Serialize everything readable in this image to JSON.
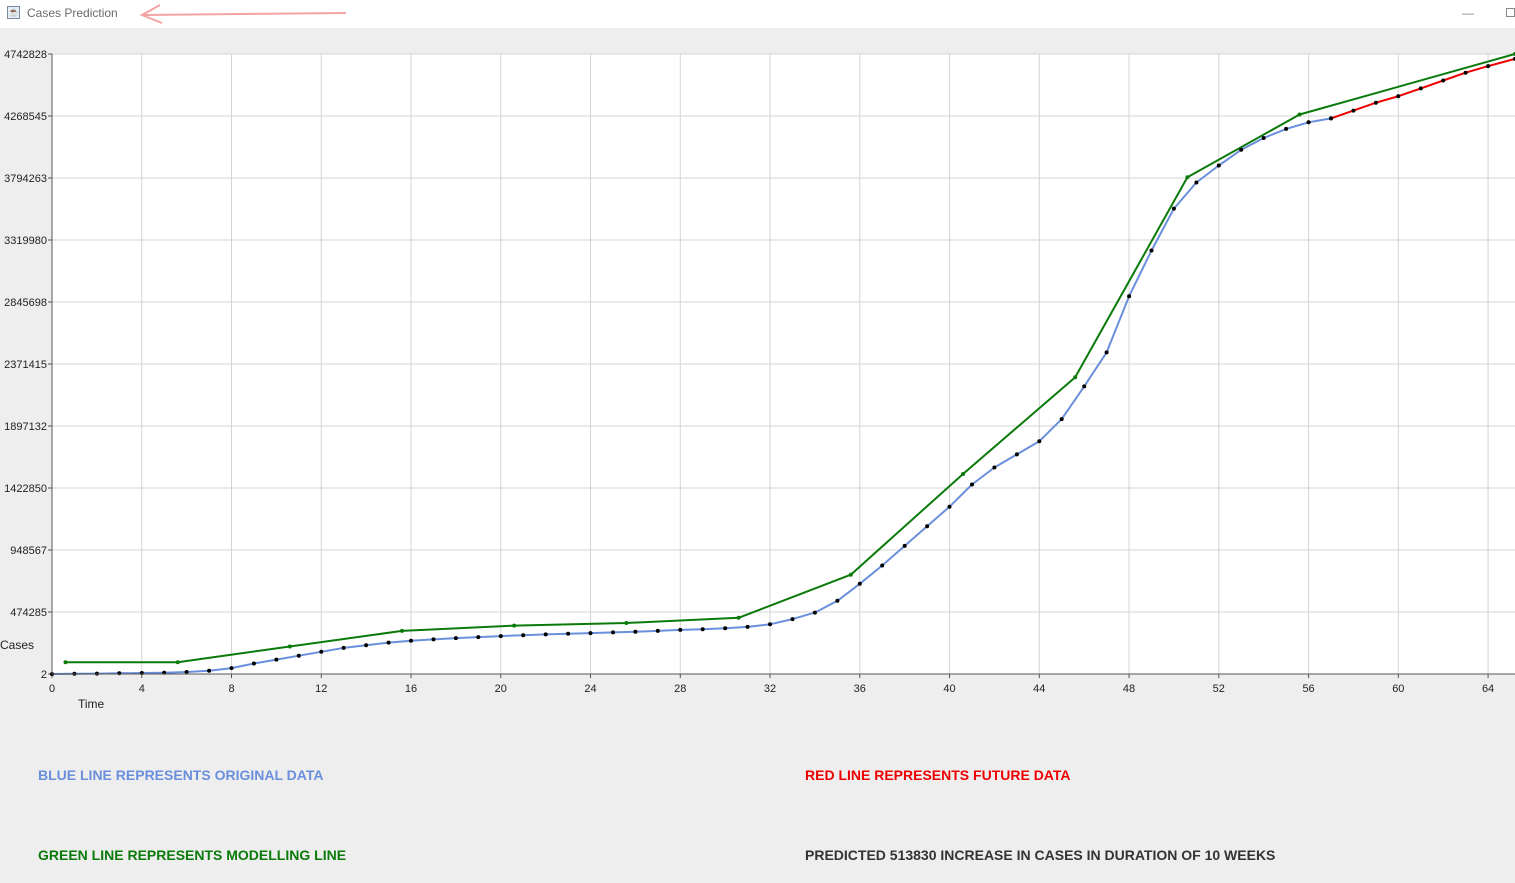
{
  "window": {
    "title": "Cases Prediction",
    "minimize_icon": "minimize-icon",
    "maximize_icon": "maximize-icon"
  },
  "legend": {
    "blue": {
      "text": "BLUE LINE REPRESENTS ORIGINAL DATA",
      "color": "#6a8fdc"
    },
    "red": {
      "text": "RED LINE REPRESENTS FUTURE DATA",
      "color": "#ee0000"
    },
    "green": {
      "text": "GREEN LINE REPRESENTS MODELLING LINE",
      "color": "#0a7a0a"
    },
    "prediction": {
      "text": "PREDICTED 513830 INCREASE IN CASES IN DURATION OF 10 WEEKS",
      "color": "#333333"
    }
  },
  "chart_data": {
    "type": "line",
    "xlabel": "Time",
    "ylabel": "Cases",
    "xlim": [
      0,
      65.2
    ],
    "ylim": [
      2,
      4742828
    ],
    "x_ticks": [
      0,
      4,
      8,
      12,
      16,
      20,
      24,
      28,
      32,
      36,
      40,
      44,
      48,
      52,
      56,
      60,
      64
    ],
    "y_ticks": [
      2,
      474285,
      948567,
      1422850,
      1897132,
      2371415,
      2845698,
      3319980,
      3794263,
      4268545,
      4742828
    ],
    "grid": true,
    "series": [
      {
        "color": "#6a8fdc",
        "markers": true,
        "x": [
          0,
          1,
          2,
          3,
          4,
          5,
          6,
          7,
          8,
          9,
          10,
          11,
          12,
          13,
          14,
          15,
          16,
          17,
          18,
          19,
          20,
          21,
          22,
          23,
          24,
          25,
          26,
          27,
          28,
          29,
          30,
          31,
          32,
          33,
          34,
          35,
          36,
          37,
          38,
          39,
          40,
          41,
          42,
          43,
          44,
          45,
          46,
          47,
          48,
          49,
          50,
          51,
          52,
          53,
          54,
          55,
          56,
          57
        ],
        "y": [
          2,
          2000,
          3000,
          5000,
          8000,
          10000,
          15000,
          25000,
          45000,
          80000,
          110000,
          140000,
          170000,
          200000,
          220000,
          240000,
          255000,
          265000,
          275000,
          282000,
          290000,
          297000,
          303000,
          308000,
          313000,
          318000,
          323000,
          330000,
          337000,
          343000,
          350000,
          360000,
          380000,
          420000,
          470000,
          560000,
          690000,
          830000,
          980000,
          1130000,
          1280000,
          1450000,
          1580000,
          1680000,
          1780000,
          1950000,
          2200000,
          2460000,
          2890000,
          3240000,
          3560000,
          3760000,
          3890000,
          4010000,
          4100000,
          4170000,
          4220000,
          4250000
        ]
      },
      {
        "color": "#ee0000",
        "markers": true,
        "x": [
          57,
          58,
          59,
          60,
          61,
          62,
          63,
          64,
          65.2
        ],
        "y": [
          4250000,
          4310000,
          4370000,
          4420000,
          4480000,
          4540000,
          4600000,
          4650000,
          4705000
        ]
      },
      {
        "color": "#0a7a0a",
        "markers": true,
        "x": [
          0.6,
          5.6,
          10.6,
          15.6,
          20.6,
          25.6,
          30.6,
          35.6,
          40.6,
          45.6,
          50.6,
          55.6,
          65.2
        ],
        "y": [
          90000,
          90000,
          210000,
          330000,
          370000,
          390000,
          430000,
          760000,
          1530000,
          2270000,
          3800000,
          4280000,
          4742828
        ]
      }
    ]
  }
}
